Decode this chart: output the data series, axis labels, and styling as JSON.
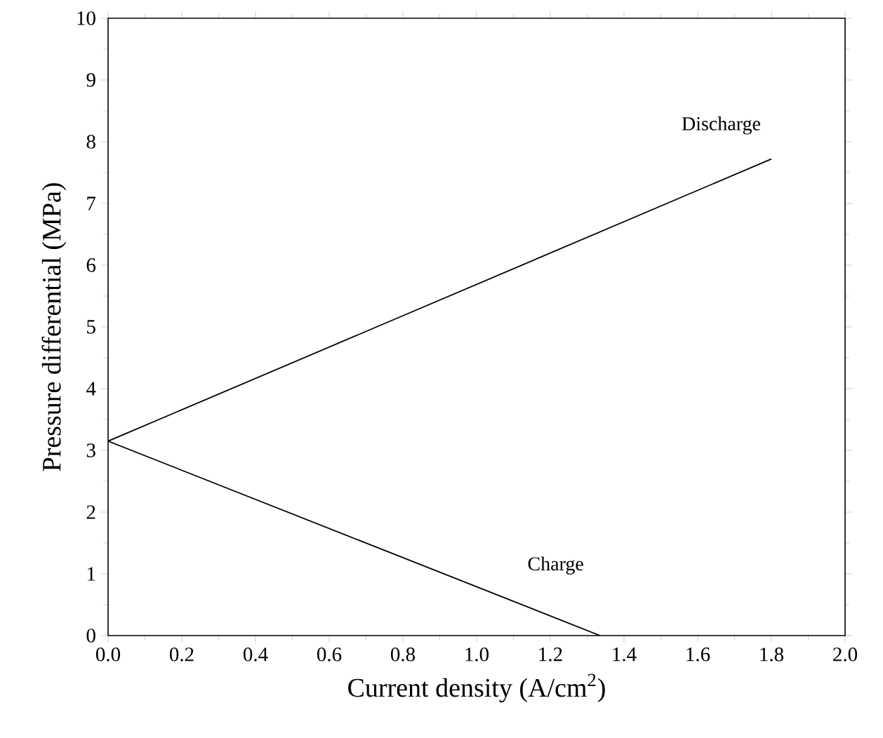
{
  "chart_data": {
    "type": "line",
    "xlabel": "Current density (A/cm$^{2}$)",
    "ylabel": "Pressure differential (MPa)",
    "series": [
      {
        "name": "Discharge",
        "color": "#000000",
        "x": [
          0,
          1.8
        ],
        "values": [
          3.15,
          7.72
        ]
      },
      {
        "name": "Charge",
        "color": "#000000",
        "x": [
          0,
          1.335
        ],
        "values": [
          3.15,
          0
        ]
      }
    ],
    "xlim": [
      0,
      2
    ],
    "ylim": [
      0,
      10
    ],
    "xticks": [
      {
        "value": 0,
        "label": "0.0"
      },
      {
        "value": 0.2,
        "label": "0.2"
      },
      {
        "value": 0.4,
        "label": "0.4"
      },
      {
        "value": 0.6,
        "label": "0.6"
      },
      {
        "value": 0.8,
        "label": "0.8"
      },
      {
        "value": 1.0,
        "label": "1.0"
      },
      {
        "value": 1.2,
        "label": "1.2"
      },
      {
        "value": 1.4,
        "label": "1.4"
      },
      {
        "value": 1.6,
        "label": "1.6"
      },
      {
        "value": 1.8,
        "label": "1.8"
      },
      {
        "value": 2.0,
        "label": "2.0"
      }
    ],
    "yticks": [
      0,
      1,
      2,
      3,
      4,
      5,
      6,
      7,
      8,
      9,
      10
    ],
    "grid": false,
    "legend": false,
    "marker": "none",
    "line_style": "solid"
  }
}
